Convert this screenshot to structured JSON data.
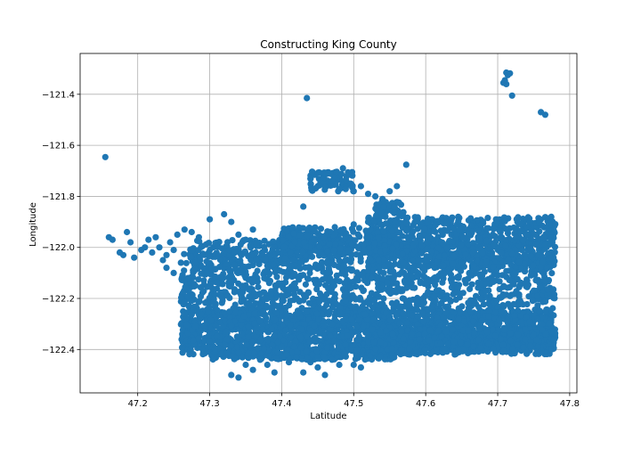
{
  "chart_data": {
    "type": "scatter",
    "title": "Constructing King County",
    "xlabel": "Latitude",
    "ylabel": "Longitude",
    "xlim": [
      47.12,
      47.81
    ],
    "ylim": [
      -122.57,
      -121.24
    ],
    "xticks": [
      47.2,
      47.3,
      47.4,
      47.5,
      47.6,
      47.7,
      47.8
    ],
    "xtick_labels": [
      "47.2",
      "47.3",
      "47.4",
      "47.5",
      "47.6",
      "47.7",
      "47.8"
    ],
    "yticks": [
      -122.4,
      -122.2,
      -122.0,
      -121.8,
      -121.6,
      -121.4
    ],
    "ytick_labels": [
      "−122.4",
      "−122.2",
      "−122.0",
      "−121.8",
      "−121.6",
      "−121.4"
    ],
    "grid": true,
    "color": "#1f77b4",
    "points": [
      [
        47.155,
        -121.646
      ],
      [
        47.435,
        -121.415
      ],
      [
        47.573,
        -121.676
      ],
      [
        47.712,
        -121.315
      ],
      [
        47.714,
        -121.325
      ],
      [
        47.717,
        -121.318
      ],
      [
        47.708,
        -121.355
      ],
      [
        47.712,
        -121.36
      ],
      [
        47.71,
        -121.345
      ],
      [
        47.72,
        -121.405
      ],
      [
        47.76,
        -121.47
      ],
      [
        47.766,
        -121.48
      ],
      [
        47.43,
        -121.84
      ],
      [
        47.16,
        -121.96
      ],
      [
        47.165,
        -121.97
      ],
      [
        47.185,
        -121.94
      ],
      [
        47.19,
        -121.98
      ],
      [
        47.18,
        -122.03
      ],
      [
        47.195,
        -122.04
      ],
      [
        47.175,
        -122.02
      ],
      [
        47.205,
        -122.01
      ],
      [
        47.21,
        -122.0
      ],
      [
        47.22,
        -122.02
      ],
      [
        47.23,
        -122.0
      ],
      [
        47.24,
        -122.03
      ],
      [
        47.215,
        -121.97
      ],
      [
        47.225,
        -121.96
      ],
      [
        47.245,
        -121.98
      ],
      [
        47.25,
        -122.01
      ],
      [
        47.235,
        -122.05
      ],
      [
        47.255,
        -121.95
      ],
      [
        47.265,
        -121.93
      ],
      [
        47.275,
        -121.94
      ],
      [
        47.285,
        -121.96
      ],
      [
        47.24,
        -122.08
      ],
      [
        47.25,
        -122.1
      ],
      [
        47.26,
        -122.06
      ],
      [
        47.27,
        -122.12
      ],
      [
        47.28,
        -122.15
      ],
      [
        47.3,
        -121.89
      ],
      [
        47.32,
        -121.87
      ],
      [
        47.33,
        -121.9
      ],
      [
        47.34,
        -121.95
      ],
      [
        47.36,
        -121.93
      ],
      [
        47.35,
        -121.97
      ],
      [
        47.33,
        -122.5
      ],
      [
        47.34,
        -122.51
      ],
      [
        47.36,
        -122.48
      ],
      [
        47.38,
        -122.46
      ],
      [
        47.35,
        -122.46
      ],
      [
        47.37,
        -122.44
      ],
      [
        47.39,
        -122.49
      ],
      [
        47.41,
        -122.45
      ],
      [
        47.42,
        -122.43
      ],
      [
        47.44,
        -122.45
      ],
      [
        47.45,
        -122.47
      ],
      [
        47.46,
        -122.5
      ],
      [
        47.48,
        -122.46
      ],
      [
        47.43,
        -122.49
      ],
      [
        47.47,
        -122.44
      ],
      [
        47.5,
        -122.46
      ],
      [
        47.51,
        -122.47
      ],
      [
        47.44,
        -121.73
      ],
      [
        47.45,
        -121.76
      ],
      [
        47.46,
        -121.71
      ],
      [
        47.47,
        -121.74
      ],
      [
        47.48,
        -121.77
      ],
      [
        47.49,
        -121.72
      ],
      [
        47.5,
        -121.78
      ],
      [
        47.51,
        -121.76
      ],
      [
        47.52,
        -121.79
      ],
      [
        47.53,
        -121.8
      ],
      [
        47.54,
        -121.81
      ],
      [
        47.55,
        -121.78
      ],
      [
        47.56,
        -121.76
      ],
      [
        47.52,
        -121.9
      ],
      [
        47.5,
        -121.91
      ],
      [
        47.485,
        -121.69
      ]
    ],
    "clusters": [
      {
        "x": [
          47.26,
          47.78
        ],
        "y": [
          -122.42,
          -121.97
        ],
        "n": 2400
      },
      {
        "x": [
          47.26,
          47.78
        ],
        "y": [
          -122.38,
          -122.25
        ],
        "n": 900
      },
      {
        "x": [
          47.3,
          47.56
        ],
        "y": [
          -122.44,
          -122.38
        ],
        "n": 300
      },
      {
        "x": [
          47.52,
          47.78
        ],
        "y": [
          -122.41,
          -122.32
        ],
        "n": 500
      },
      {
        "x": [
          47.52,
          47.78
        ],
        "y": [
          -122.08,
          -121.88
        ],
        "n": 700
      },
      {
        "x": [
          47.4,
          47.56
        ],
        "y": [
          -122.02,
          -121.92
        ],
        "n": 250
      },
      {
        "x": [
          47.53,
          47.57
        ],
        "y": [
          -121.88,
          -121.82
        ],
        "n": 60
      },
      {
        "x": [
          47.44,
          47.5
        ],
        "y": [
          -121.78,
          -121.7
        ],
        "n": 70
      }
    ]
  }
}
